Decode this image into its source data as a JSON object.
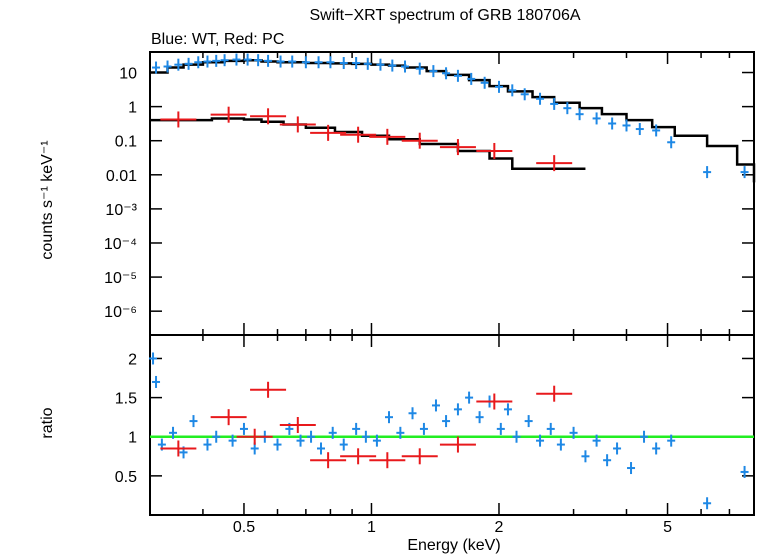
{
  "chart_data": [
    {
      "type": "scatter",
      "panel": "spectrum",
      "title": "Swift−XRT spectrum of GRB 180706A",
      "subtitle": "Blue: WT, Red: PC",
      "xlabel": "",
      "ylabel": "counts s⁻¹ keV⁻¹",
      "xscale": "log",
      "yscale": "log",
      "xlim": [
        0.3,
        8.0
      ],
      "ylim": [
        2e-07,
        40
      ],
      "y_ticks": [
        "10",
        "1",
        "0.1",
        "0.01",
        "10⁻³",
        "10⁻⁴",
        "10⁻⁵",
        "10⁻⁶"
      ],
      "y_tick_values": [
        10,
        1,
        0.1,
        0.01,
        0.001,
        0.0001,
        1e-05,
        1e-06
      ],
      "series": [
        {
          "name": "WT",
          "color": "#1e88e5",
          "points": [
            [
              0.31,
              14
            ],
            [
              0.33,
              15
            ],
            [
              0.35,
              17
            ],
            [
              0.37,
              18
            ],
            [
              0.39,
              20
            ],
            [
              0.41,
              21
            ],
            [
              0.43,
              22
            ],
            [
              0.45,
              23
            ],
            [
              0.48,
              24
            ],
            [
              0.51,
              24
            ],
            [
              0.54,
              23
            ],
            [
              0.57,
              22
            ],
            [
              0.61,
              21
            ],
            [
              0.65,
              21
            ],
            [
              0.7,
              20
            ],
            [
              0.75,
              20
            ],
            [
              0.8,
              20
            ],
            [
              0.86,
              19
            ],
            [
              0.92,
              19
            ],
            [
              0.98,
              18
            ],
            [
              1.05,
              17
            ],
            [
              1.12,
              16
            ],
            [
              1.2,
              15
            ],
            [
              1.3,
              13
            ],
            [
              1.4,
              11
            ],
            [
              1.5,
              9.5
            ],
            [
              1.6,
              8
            ],
            [
              1.72,
              6.5
            ],
            [
              1.85,
              5
            ],
            [
              2.0,
              3.8
            ],
            [
              2.15,
              3.0
            ],
            [
              2.3,
              2.3
            ],
            [
              2.5,
              1.7
            ],
            [
              2.7,
              1.2
            ],
            [
              2.9,
              0.9
            ],
            [
              3.1,
              0.6
            ],
            [
              3.4,
              0.45
            ],
            [
              3.7,
              0.32
            ],
            [
              4.0,
              0.28
            ],
            [
              4.3,
              0.22
            ],
            [
              4.7,
              0.2
            ],
            [
              5.1,
              0.09
            ],
            [
              6.2,
              0.012
            ],
            [
              7.6,
              0.012
            ]
          ]
        },
        {
          "name": "PC",
          "color": "#e8191c",
          "points": [
            [
              0.35,
              0.42
            ],
            [
              0.46,
              0.58
            ],
            [
              0.57,
              0.52
            ],
            [
              0.67,
              0.3
            ],
            [
              0.79,
              0.17
            ],
            [
              0.93,
              0.15
            ],
            [
              1.09,
              0.13
            ],
            [
              1.3,
              0.1
            ],
            [
              1.6,
              0.065
            ],
            [
              1.95,
              0.05
            ],
            [
              2.7,
              0.022
            ]
          ]
        },
        {
          "name": "WT model",
          "color": "#000000",
          "points": [
            [
              0.3,
              10
            ],
            [
              0.33,
              14
            ],
            [
              0.36,
              17
            ],
            [
              0.4,
              20
            ],
            [
              0.45,
              22
            ],
            [
              0.5,
              23
            ],
            [
              0.55,
              21
            ],
            [
              0.6,
              20
            ],
            [
              0.7,
              19
            ],
            [
              0.8,
              18.5
            ],
            [
              0.9,
              18
            ],
            [
              1.0,
              17
            ],
            [
              1.1,
              16
            ],
            [
              1.2,
              14
            ],
            [
              1.35,
              11
            ],
            [
              1.5,
              8.5
            ],
            [
              1.7,
              6
            ],
            [
              1.9,
              4
            ],
            [
              2.1,
              2.8
            ],
            [
              2.4,
              1.9
            ],
            [
              2.7,
              1.3
            ],
            [
              3.1,
              0.9
            ],
            [
              3.5,
              0.6
            ],
            [
              4.0,
              0.4
            ],
            [
              4.6,
              0.25
            ],
            [
              5.2,
              0.14
            ],
            [
              6.2,
              0.07
            ],
            [
              7.3,
              0.02
            ],
            [
              8.0,
              0.006
            ]
          ]
        },
        {
          "name": "PC model",
          "color": "#000000",
          "points": [
            [
              0.3,
              0.4
            ],
            [
              0.42,
              0.45
            ],
            [
              0.5,
              0.42
            ],
            [
              0.55,
              0.36
            ],
            [
              0.62,
              0.3
            ],
            [
              0.7,
              0.24
            ],
            [
              0.82,
              0.18
            ],
            [
              0.95,
              0.14
            ],
            [
              1.1,
              0.11
            ],
            [
              1.3,
              0.08
            ],
            [
              1.6,
              0.05
            ],
            [
              1.9,
              0.03
            ],
            [
              2.15,
              0.015
            ],
            [
              3.2,
              0.015
            ]
          ]
        }
      ]
    },
    {
      "type": "scatter",
      "panel": "ratio",
      "xlabel": "Energy (keV)",
      "ylabel": "ratio",
      "xscale": "log",
      "yscale": "linear",
      "xlim": [
        0.3,
        8.0
      ],
      "ylim": [
        0.0,
        2.3
      ],
      "x_ticks": [
        "0.5",
        "1",
        "2",
        "5"
      ],
      "x_tick_values": [
        0.5,
        1,
        2,
        5
      ],
      "y_ticks": [
        "0.5",
        "1",
        "1.5",
        "2"
      ],
      "y_tick_values": [
        0.5,
        1,
        1.5,
        2
      ],
      "reference_line": {
        "y": 1.0,
        "color": "#22ee22"
      },
      "series": [
        {
          "name": "WT",
          "color": "#1e88e5",
          "points": [
            [
              0.305,
              2.0
            ],
            [
              0.31,
              1.7
            ],
            [
              0.32,
              0.9
            ],
            [
              0.34,
              1.05
            ],
            [
              0.36,
              0.8
            ],
            [
              0.38,
              1.2
            ],
            [
              0.41,
              0.9
            ],
            [
              0.43,
              1.0
            ],
            [
              0.47,
              0.95
            ],
            [
              0.5,
              1.1
            ],
            [
              0.53,
              0.85
            ],
            [
              0.56,
              1.0
            ],
            [
              0.6,
              0.9
            ],
            [
              0.64,
              1.1
            ],
            [
              0.68,
              0.95
            ],
            [
              0.72,
              1.0
            ],
            [
              0.76,
              0.85
            ],
            [
              0.81,
              1.05
            ],
            [
              0.86,
              0.9
            ],
            [
              0.92,
              1.1
            ],
            [
              0.97,
              1.0
            ],
            [
              1.03,
              0.95
            ],
            [
              1.1,
              1.25
            ],
            [
              1.17,
              1.05
            ],
            [
              1.25,
              1.3
            ],
            [
              1.33,
              1.1
            ],
            [
              1.42,
              1.4
            ],
            [
              1.5,
              1.2
            ],
            [
              1.6,
              1.35
            ],
            [
              1.7,
              1.5
            ],
            [
              1.8,
              1.25
            ],
            [
              1.9,
              1.45
            ],
            [
              2.02,
              1.1
            ],
            [
              2.1,
              1.35
            ],
            [
              2.2,
              1.0
            ],
            [
              2.35,
              1.2
            ],
            [
              2.5,
              0.95
            ],
            [
              2.65,
              1.1
            ],
            [
              2.8,
              0.9
            ],
            [
              3.0,
              1.05
            ],
            [
              3.2,
              0.75
            ],
            [
              3.4,
              0.95
            ],
            [
              3.6,
              0.7
            ],
            [
              3.8,
              0.85
            ],
            [
              4.1,
              0.6
            ],
            [
              4.4,
              1.0
            ],
            [
              4.7,
              0.85
            ],
            [
              5.1,
              0.95
            ],
            [
              6.2,
              0.15
            ],
            [
              7.6,
              0.55
            ]
          ]
        },
        {
          "name": "PC",
          "color": "#e8191c",
          "points": [
            [
              0.35,
              0.85
            ],
            [
              0.46,
              1.25
            ],
            [
              0.53,
              1.0
            ],
            [
              0.57,
              1.6
            ],
            [
              0.67,
              1.15
            ],
            [
              0.79,
              0.7
            ],
            [
              0.93,
              0.75
            ],
            [
              1.09,
              0.7
            ],
            [
              1.3,
              0.75
            ],
            [
              1.6,
              0.9
            ],
            [
              1.95,
              1.45
            ],
            [
              2.7,
              1.55
            ]
          ]
        }
      ]
    }
  ]
}
